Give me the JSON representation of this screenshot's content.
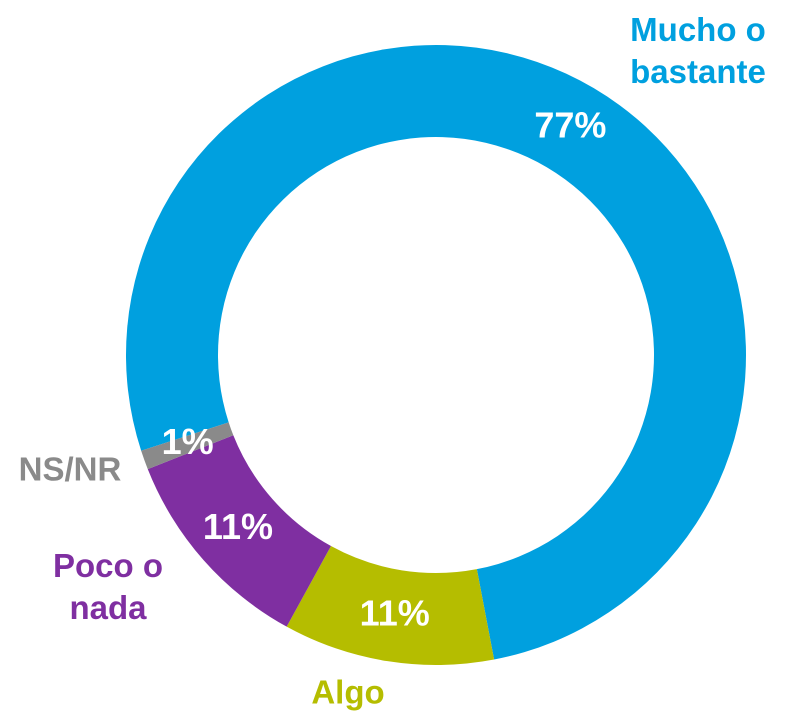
{
  "chart_data": {
    "type": "donut",
    "categories": [
      "Mucho o bastante",
      "Algo",
      "Poco o nada",
      "NS/NR"
    ],
    "values": [
      77,
      11,
      11,
      1
    ],
    "value_labels": [
      "77%",
      "11%",
      "11%",
      "1%"
    ],
    "colors": [
      "#00a0df",
      "#b5bd00",
      "#7f2fa1",
      "#8a8a8a"
    ]
  }
}
